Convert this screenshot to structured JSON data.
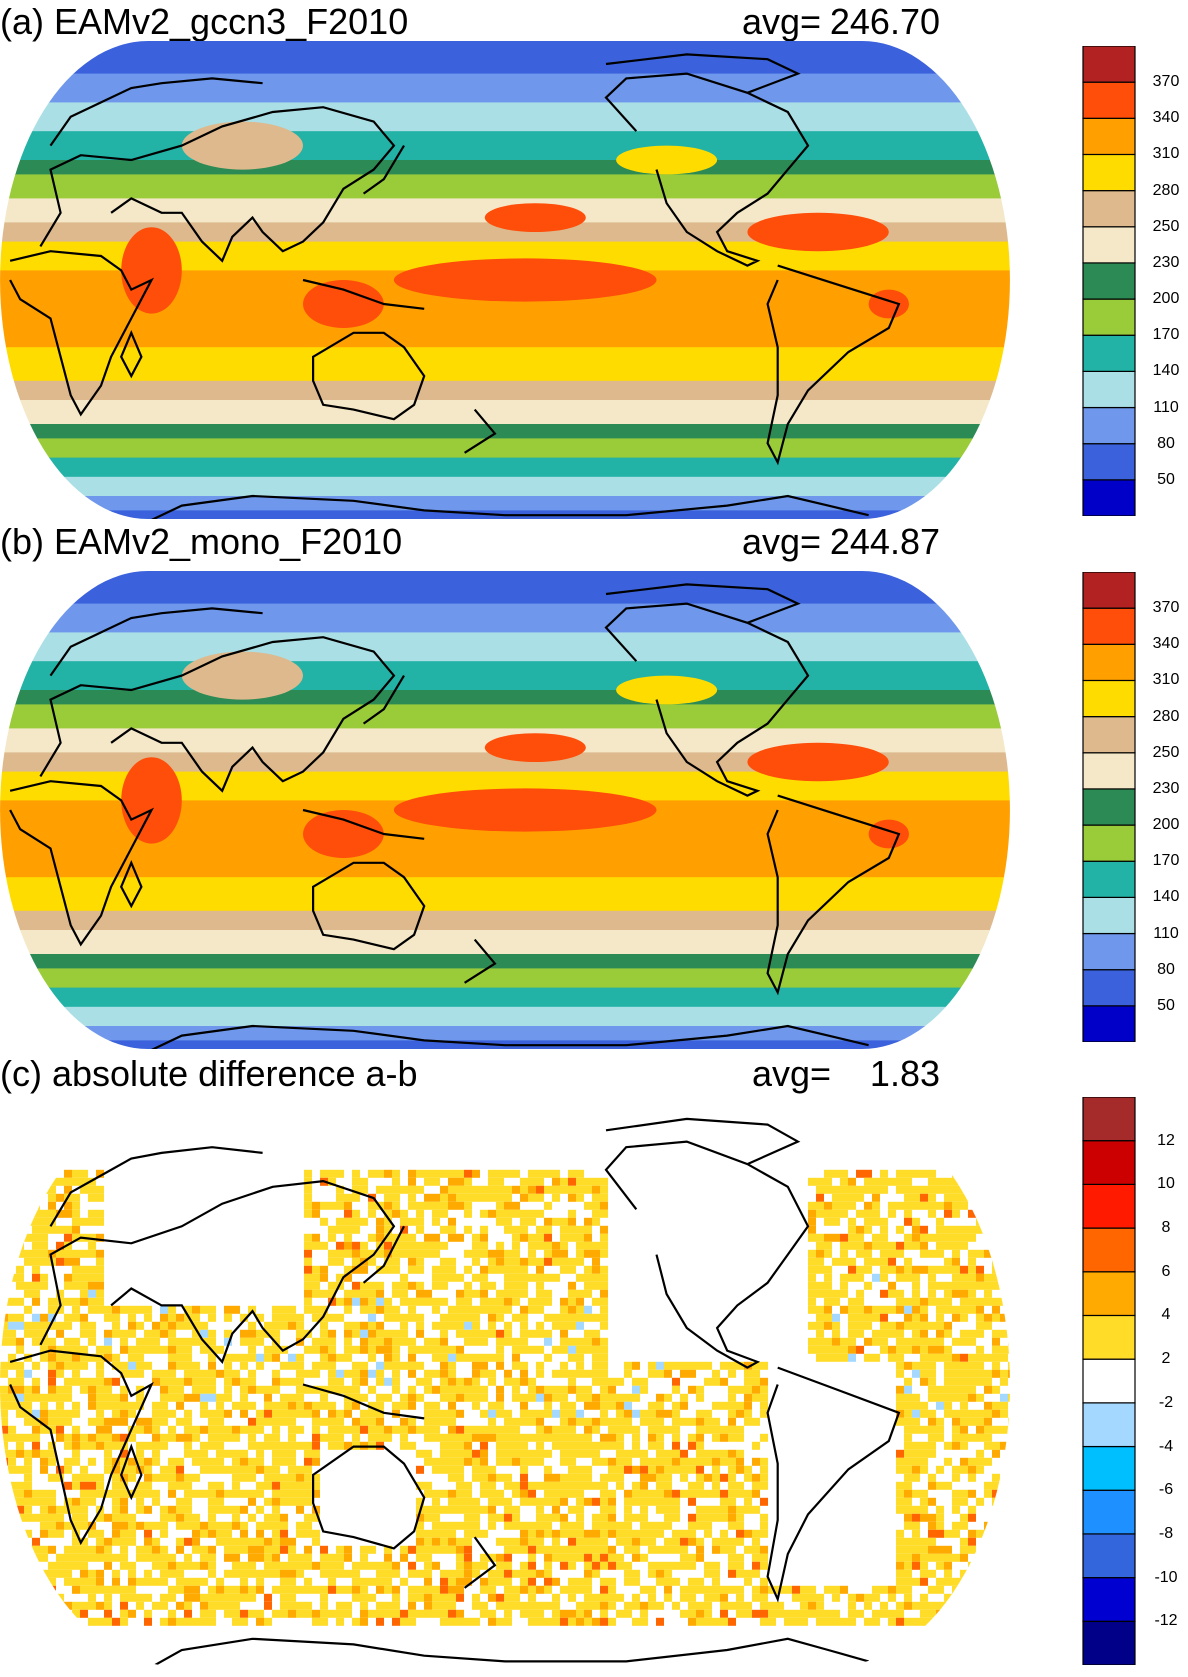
{
  "panels": [
    {
      "id": "a",
      "title": "(a) EAMv2_gccn3_F2010",
      "avg_label": "avg=",
      "avg_value": "246.70",
      "field": "absolute",
      "colorbar": {
        "colors": [
          "#0000c8",
          "#3b62dc",
          "#6f98ec",
          "#aadfe6",
          "#22b2a6",
          "#9acb38",
          "#2c8a55",
          "#f4e8c8",
          "#ddb98d",
          "#ffdc00",
          "#ffa000",
          "#ff4d0a",
          "#b22222"
        ],
        "labels": [
          "50",
          "80",
          "110",
          "140",
          "170",
          "200",
          "230",
          "250",
          "280",
          "310",
          "340",
          "370"
        ]
      }
    },
    {
      "id": "b",
      "title": "(b) EAMv2_mono_F2010",
      "avg_label": "avg=",
      "avg_value": "244.87",
      "field": "absolute",
      "colorbar": {
        "colors": [
          "#0000c8",
          "#3b62dc",
          "#6f98ec",
          "#aadfe6",
          "#22b2a6",
          "#9acb38",
          "#2c8a55",
          "#f4e8c8",
          "#ddb98d",
          "#ffdc00",
          "#ffa000",
          "#ff4d0a",
          "#b22222"
        ],
        "labels": [
          "50",
          "80",
          "110",
          "140",
          "170",
          "200",
          "230",
          "250",
          "280",
          "310",
          "340",
          "370"
        ]
      }
    },
    {
      "id": "c",
      "title": "(c) absolute difference a-b",
      "avg_label": "avg=",
      "avg_value": "1.83",
      "field": "difference",
      "colorbar": {
        "colors": [
          "#000088",
          "#0000d0",
          "#3366dd",
          "#1e90ff",
          "#00bfff",
          "#a4d8ff",
          "#ffffff",
          "#ffdc28",
          "#ffaa00",
          "#ff6600",
          "#ff1a00",
          "#cc0000",
          "#a52a2a"
        ],
        "labels": [
          "-12",
          "-10",
          "-8",
          "-6",
          "-4",
          "-2",
          "2",
          "4",
          "6",
          "8",
          "10",
          "12"
        ]
      }
    }
  ]
}
